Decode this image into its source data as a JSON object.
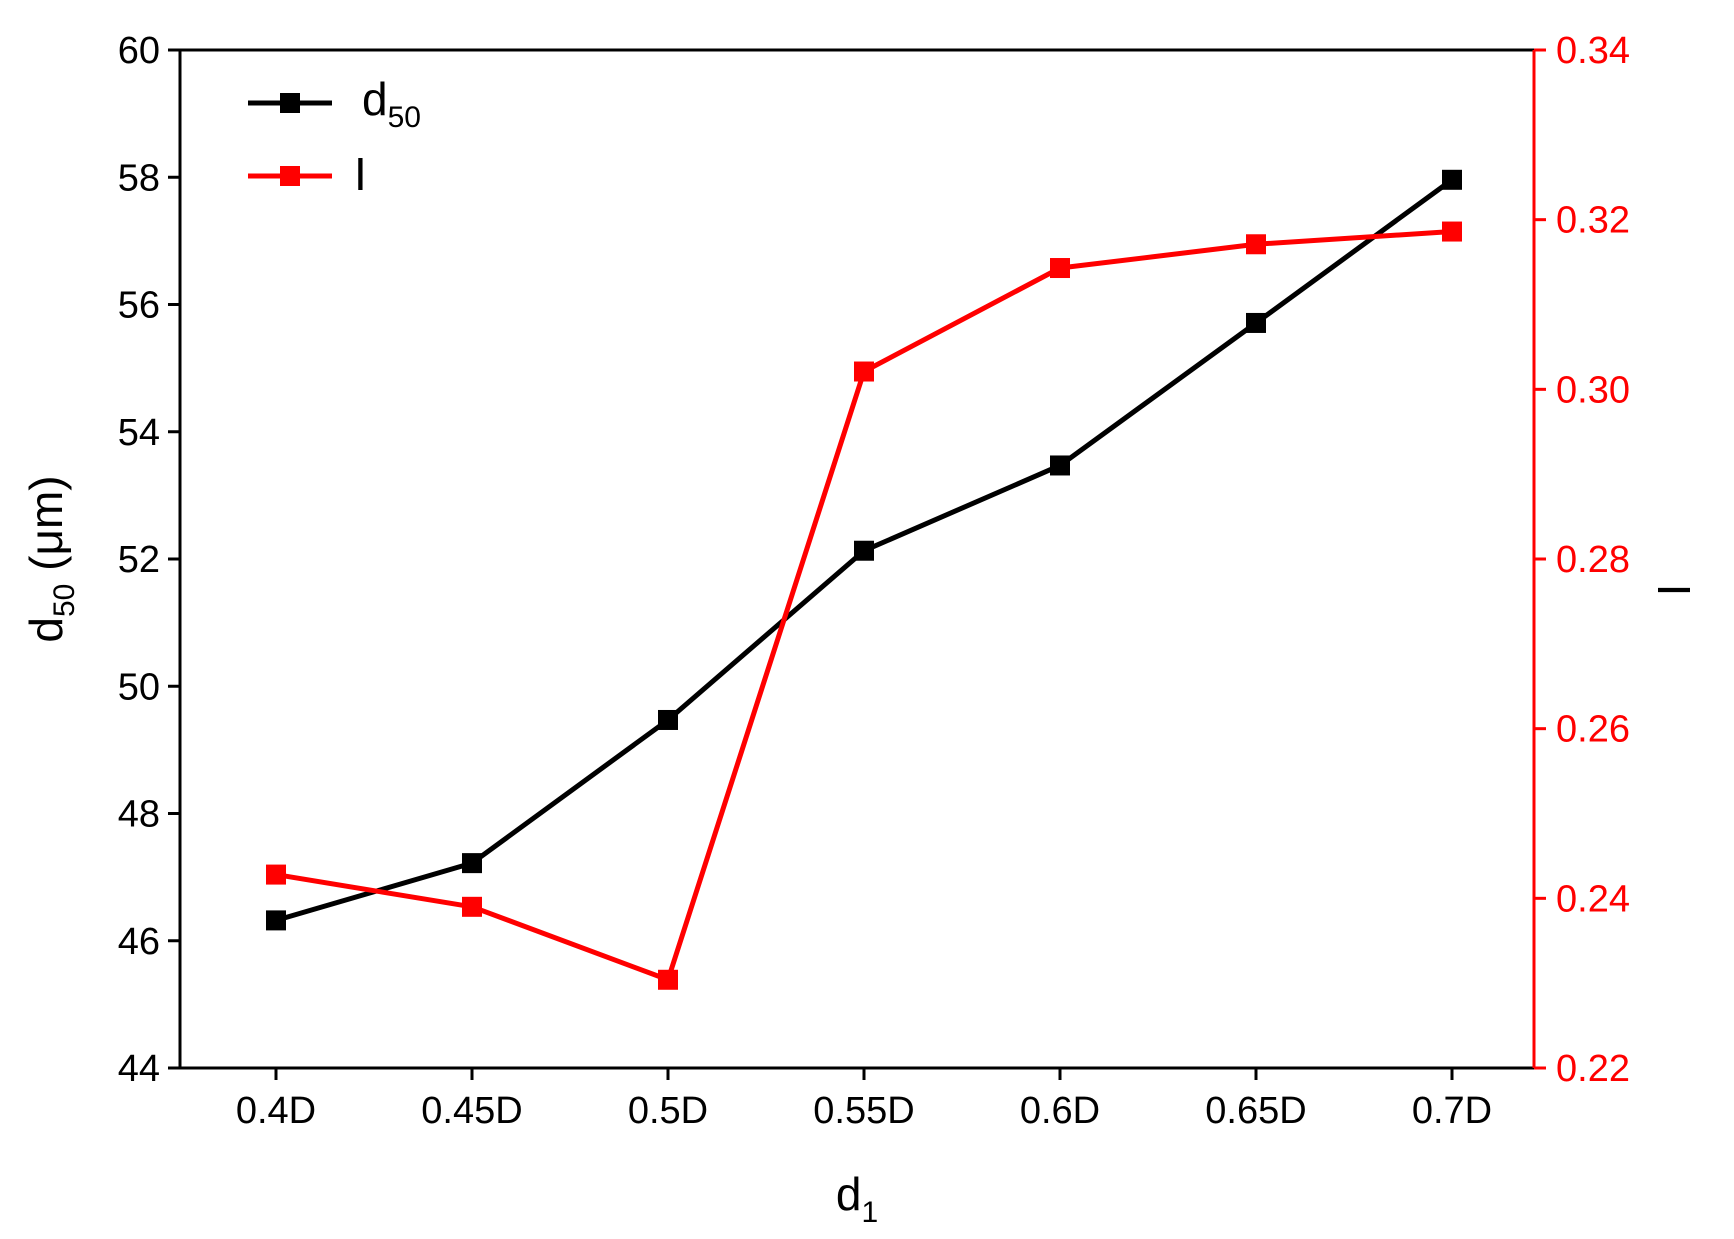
{
  "chart_data": {
    "type": "line",
    "categories": [
      "0.4D",
      "0.45D",
      "0.5D",
      "0.55D",
      "0.6D",
      "0.65D",
      "0.7D"
    ],
    "xlabel": {
      "main": "d",
      "sub": "1"
    },
    "ylabel_left": {
      "main": "d",
      "sub": "50",
      "suffix": " (μm)"
    },
    "ylabel_right": "I",
    "ylim_left": [
      44,
      60
    ],
    "ylim_right": [
      0.22,
      0.34
    ],
    "yticks_left": [
      "44",
      "46",
      "48",
      "50",
      "52",
      "54",
      "56",
      "58",
      "60"
    ],
    "yticks_right": [
      "0.22",
      "0.24",
      "0.26",
      "0.28",
      "0.30",
      "0.32",
      "0.34"
    ],
    "grid": false,
    "legend_position": "top-left",
    "series": [
      {
        "name": "d50",
        "legend_main": "d",
        "legend_sub": "50",
        "axis": "left",
        "color": "#000000",
        "marker": "square",
        "values": [
          46.32,
          47.22,
          49.47,
          52.13,
          53.47,
          55.71,
          57.96
        ]
      },
      {
        "name": "I",
        "legend_main": "I",
        "legend_sub": "",
        "axis": "right",
        "color": "#ff0000",
        "marker": "square",
        "values": [
          0.2428,
          0.239,
          0.2304,
          0.3021,
          0.3143,
          0.3171,
          0.3186
        ]
      }
    ]
  }
}
